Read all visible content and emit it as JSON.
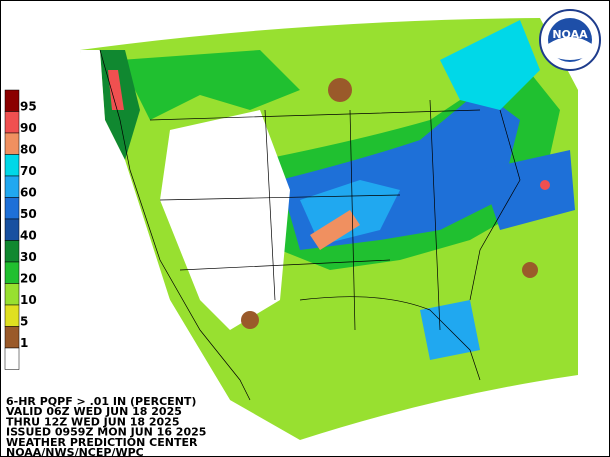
{
  "legend": {
    "items": [
      {
        "label": "95",
        "color": "#8b0000"
      },
      {
        "label": "90",
        "color": "#f05050"
      },
      {
        "label": "80",
        "color": "#f09060"
      },
      {
        "label": "70",
        "color": "#00d8e8"
      },
      {
        "label": "60",
        "color": "#20a8f0"
      },
      {
        "label": "50",
        "color": "#1e70d8"
      },
      {
        "label": "40",
        "color": "#1850a0"
      },
      {
        "label": "30",
        "color": "#108830"
      },
      {
        "label": "20",
        "color": "#20c030"
      },
      {
        "label": "10",
        "color": "#98e030"
      },
      {
        "label": "5",
        "color": "#e0e020"
      },
      {
        "label": "1",
        "color": "#9a5a2a"
      }
    ]
  },
  "footer": {
    "lines": [
      "6-HR PQPF > .01 IN (PERCENT)",
      "VALID 06Z WED JUN 18 2025",
      "THRU 12Z WED JUN 18 2025",
      "ISSUED 0959Z MON JUN 16 2025",
      "WEATHER PREDICTION CENTER",
      "NOAA/NWS/NCEP/WPC"
    ]
  },
  "logo": {
    "text": "NOAA"
  }
}
